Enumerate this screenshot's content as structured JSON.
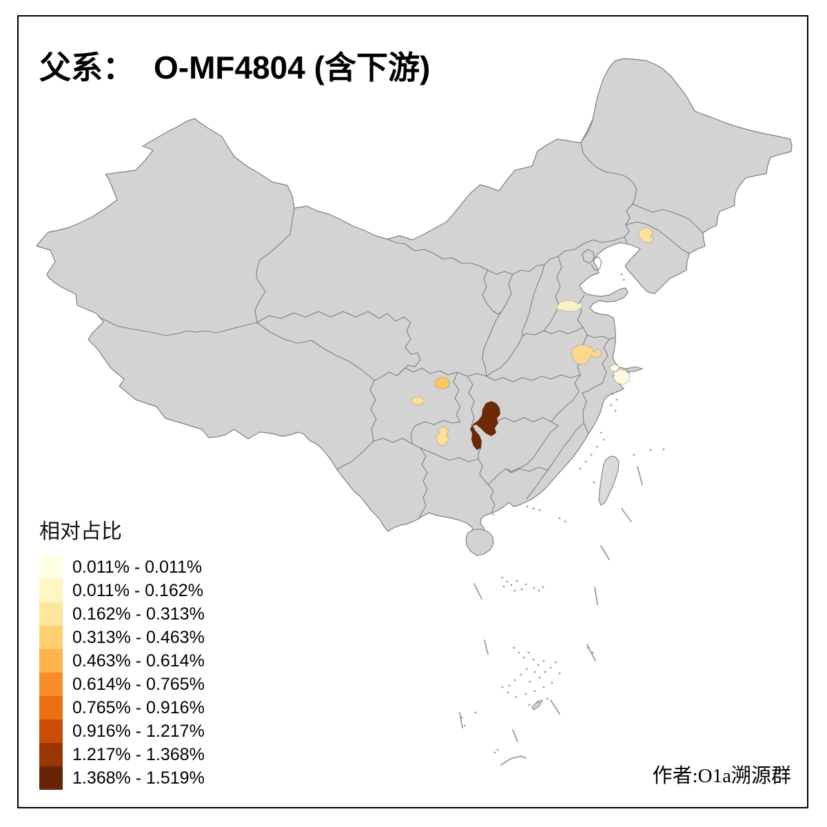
{
  "title": {
    "prefix": "父系：",
    "main": "O-MF4804 (含下游)"
  },
  "legend": {
    "title": "相对占比",
    "items": [
      {
        "range": "0.011% - 0.011%",
        "color": "#FFFFE5"
      },
      {
        "range": "0.011% - 0.162%",
        "color": "#FFF7C1"
      },
      {
        "range": "0.162% - 0.313%",
        "color": "#FEE69A"
      },
      {
        "range": "0.313% - 0.463%",
        "color": "#FED16E"
      },
      {
        "range": "0.463% - 0.614%",
        "color": "#FDB44A"
      },
      {
        "range": "0.614% - 0.765%",
        "color": "#F98D2C"
      },
      {
        "range": "0.765% - 0.916%",
        "color": "#EB7014"
      },
      {
        "range": "0.916% - 1.217%",
        "color": "#CB4D03"
      },
      {
        "range": "1.217% - 1.368%",
        "color": "#9A3504"
      },
      {
        "range": "1.368% - 1.519%",
        "color": "#662506"
      }
    ]
  },
  "attribution": "作者:O1a溯源群",
  "map": {
    "base_fill": "#d3d3d3",
    "island_fill": "#dbdbdb",
    "border_color": "#7d7d7d",
    "islet_color": "#9a9a9a",
    "background": "#ffffff",
    "regions": [
      {
        "name": "chongqing-hunan-dark-region",
        "value_class": "1.368% - 1.519%",
        "color": "#6b2906"
      },
      {
        "name": "northeast-sichuan-region",
        "value_class": "0.313% - 0.463%",
        "color": "#fbc55f"
      },
      {
        "name": "south-sichuan-region",
        "value_class": "0.162% - 0.313%",
        "color": "#fce193"
      },
      {
        "name": "north-guizhou-region",
        "value_class": "0.162% - 0.313%",
        "color": "#fce298"
      },
      {
        "name": "central-henan-region",
        "value_class": "0.011% - 0.162%",
        "color": "#faf3c0"
      },
      {
        "name": "east-anhui-region",
        "value_class": "0.162% - 0.313%",
        "color": "#fbd88a"
      },
      {
        "name": "shanghai-region",
        "value_class": "0.011% - 0.011%",
        "color": "#fdfade"
      },
      {
        "name": "central-liaoning-region",
        "value_class": "0.162% - 0.313%",
        "color": "#fce399"
      }
    ]
  }
}
